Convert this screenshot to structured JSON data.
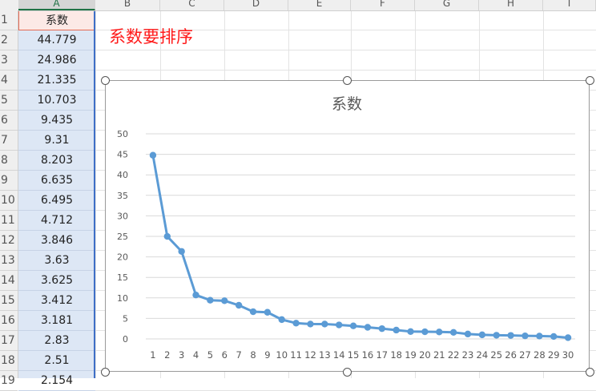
{
  "columns": [
    "A",
    "B",
    "C",
    "D",
    "E",
    "F",
    "G",
    "H",
    "I"
  ],
  "rows": [
    "1",
    "2",
    "3",
    "4",
    "5",
    "6",
    "7",
    "8",
    "9",
    "10",
    "11",
    "12",
    "13",
    "14",
    "15",
    "16",
    "17",
    "18",
    "19"
  ],
  "cells": {
    "header": "系数",
    "values": [
      "44.779",
      "24.986",
      "21.335",
      "10.703",
      "9.435",
      "9.31",
      "8.203",
      "6.635",
      "6.495",
      "4.712",
      "3.846",
      "3.63",
      "3.625",
      "3.412",
      "3.181",
      "2.83",
      "2.51",
      "2.154"
    ]
  },
  "note": "系数要排序",
  "colors": {
    "line": "#5b9bd5",
    "note": "#ff1a1a",
    "selection": "#3e6fc7"
  },
  "chart_data": {
    "type": "line",
    "title": "系数",
    "xlabel": "",
    "ylabel": "",
    "x": [
      1,
      2,
      3,
      4,
      5,
      6,
      7,
      8,
      9,
      10,
      11,
      12,
      13,
      14,
      15,
      16,
      17,
      18,
      19,
      20,
      21,
      22,
      23,
      24,
      25,
      26,
      27,
      28,
      29,
      30
    ],
    "series": [
      {
        "values": [
          44.779,
          24.986,
          21.335,
          10.703,
          9.435,
          9.31,
          8.203,
          6.635,
          6.495,
          4.712,
          3.846,
          3.63,
          3.625,
          3.412,
          3.181,
          2.83,
          2.51,
          2.154,
          1.8,
          1.75,
          1.7,
          1.6,
          1.2,
          1.0,
          0.9,
          0.85,
          0.75,
          0.7,
          0.6,
          0.3
        ]
      }
    ],
    "ylim": [
      0,
      50
    ],
    "yticks": [
      0,
      5,
      10,
      15,
      20,
      25,
      30,
      35,
      40,
      45,
      50
    ],
    "grid": true,
    "legend": "none"
  }
}
